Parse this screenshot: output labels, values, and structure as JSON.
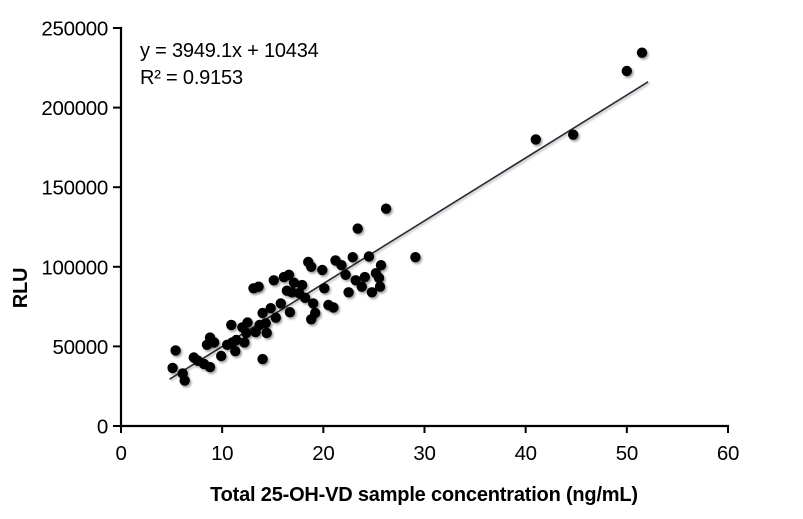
{
  "figure": {
    "background_color": "#ffffff",
    "text_color": "#000000"
  },
  "chart_data": {
    "type": "scatter",
    "title": "",
    "xlabel": "Total 25-OH-VD  sample concentration (ng/mL)",
    "ylabel": "RLU",
    "xlim": [
      0,
      60
    ],
    "ylim": [
      0,
      250000
    ],
    "x_ticks": [
      0,
      10,
      20,
      30,
      40,
      50,
      60
    ],
    "y_ticks": [
      0,
      50000,
      100000,
      150000,
      200000,
      250000
    ],
    "grid": false,
    "legend": "none",
    "marker_color": "#050505",
    "trendline": {
      "slope": 3949.1,
      "intercept": 10434,
      "x_start": 4.8,
      "x_end": 52.1,
      "color": "#2b2b36"
    },
    "annotations": {
      "equation": "y = 3949.1x + 10434",
      "r_squared": "R² = 0.9153"
    },
    "points": [
      [
        5.4,
        47500
      ],
      [
        5.1,
        36500
      ],
      [
        6.1,
        33000
      ],
      [
        6.3,
        28500
      ],
      [
        7.2,
        43000
      ],
      [
        7.6,
        41000
      ],
      [
        8.2,
        39000
      ],
      [
        8.8,
        37000
      ],
      [
        8.5,
        51000
      ],
      [
        8.8,
        55500
      ],
      [
        9.2,
        52500
      ],
      [
        9.9,
        44000
      ],
      [
        10.5,
        51000
      ],
      [
        11.0,
        52500
      ],
      [
        11.4,
        54000
      ],
      [
        11.3,
        47000
      ],
      [
        10.9,
        63500
      ],
      [
        12.2,
        52500
      ],
      [
        12.0,
        62000
      ],
      [
        12.4,
        58500
      ],
      [
        12.5,
        65000
      ],
      [
        13.1,
        86500
      ],
      [
        13.3,
        59000
      ],
      [
        13.6,
        87500
      ],
      [
        13.7,
        63500
      ],
      [
        14.0,
        71000
      ],
      [
        14.0,
        42000
      ],
      [
        14.3,
        64500
      ],
      [
        14.4,
        58500
      ],
      [
        14.8,
        74000
      ],
      [
        15.1,
        91500
      ],
      [
        15.3,
        68000
      ],
      [
        15.8,
        77000
      ],
      [
        16.1,
        93500
      ],
      [
        16.4,
        85000
      ],
      [
        16.6,
        95000
      ],
      [
        16.7,
        71500
      ],
      [
        16.9,
        84000
      ],
      [
        17.1,
        90000
      ],
      [
        17.6,
        83500
      ],
      [
        17.9,
        88500
      ],
      [
        18.2,
        80500
      ],
      [
        18.5,
        103000
      ],
      [
        18.8,
        100000
      ],
      [
        18.8,
        67000
      ],
      [
        19.0,
        77000
      ],
      [
        19.2,
        71000
      ],
      [
        19.9,
        98000
      ],
      [
        20.1,
        86500
      ],
      [
        20.5,
        76000
      ],
      [
        21.0,
        74500
      ],
      [
        21.2,
        104000
      ],
      [
        21.8,
        101000
      ],
      [
        22.2,
        95000
      ],
      [
        22.5,
        84000
      ],
      [
        22.9,
        106000
      ],
      [
        23.2,
        91500
      ],
      [
        23.4,
        124000
      ],
      [
        23.8,
        87500
      ],
      [
        24.1,
        93500
      ],
      [
        24.5,
        106500
      ],
      [
        24.8,
        84000
      ],
      [
        25.2,
        96000
      ],
      [
        25.5,
        93000
      ],
      [
        25.6,
        87500
      ],
      [
        25.7,
        101000
      ],
      [
        26.2,
        136500
      ],
      [
        29.1,
        106000
      ],
      [
        41.0,
        180000
      ],
      [
        44.7,
        183000
      ],
      [
        50.0,
        223000
      ],
      [
        51.5,
        234500
      ]
    ]
  }
}
